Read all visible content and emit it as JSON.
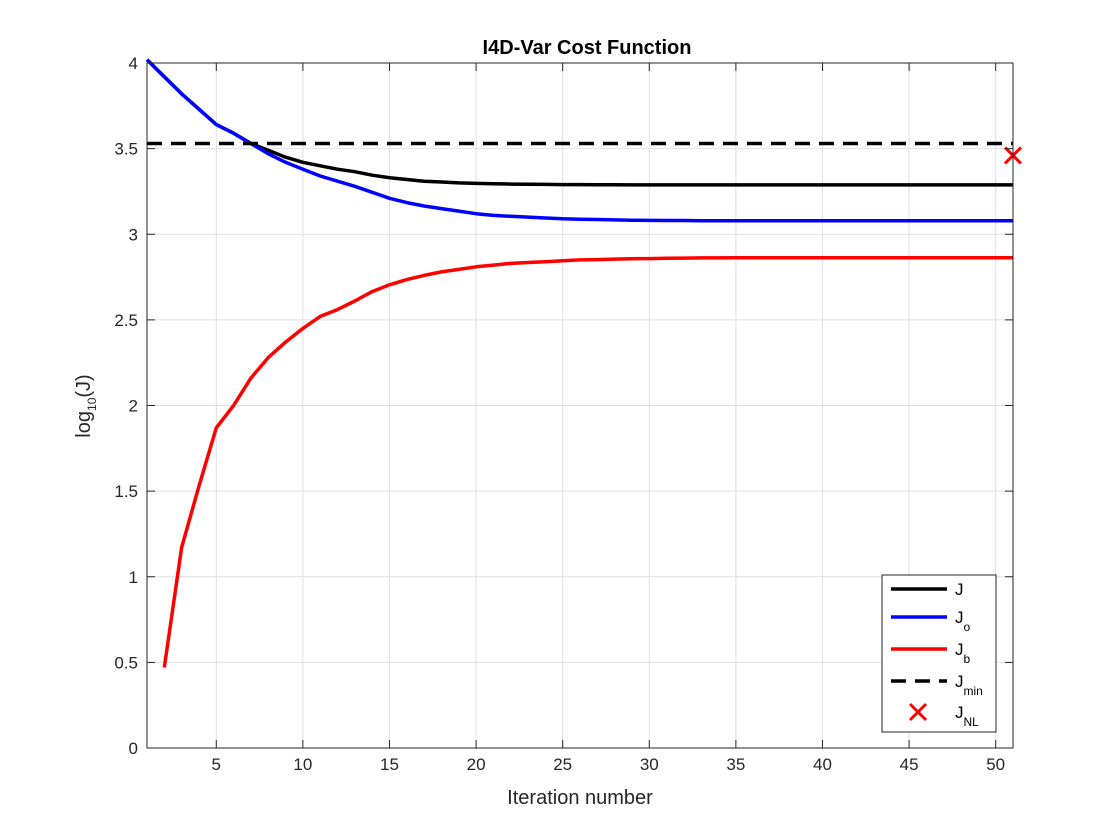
{
  "chart_data": {
    "type": "line",
    "title": "I4D-Var Cost Function",
    "xlabel": "Iteration number",
    "ylabel": {
      "main": "log",
      "sub": "10",
      "tail": "(J)"
    },
    "xlim": [
      1,
      51
    ],
    "ylim": [
      0,
      4
    ],
    "xticks": [
      5,
      10,
      15,
      20,
      25,
      30,
      35,
      40,
      45,
      50
    ],
    "yticks": [
      0,
      0.5,
      1,
      1.5,
      2,
      2.5,
      3,
      3.5,
      4
    ],
    "grid": true,
    "legend_position": "bottom-right",
    "series": [
      {
        "name": "J",
        "name_main": "J",
        "name_sub": "",
        "color": "#000000",
        "style": "solid",
        "x": [
          1,
          2,
          3,
          4,
          5,
          6,
          7,
          8,
          9,
          10,
          11,
          12,
          13,
          14,
          15,
          16,
          17,
          18,
          19,
          20,
          21,
          22,
          23,
          24,
          25,
          26,
          27,
          28,
          29,
          30,
          31,
          32,
          33,
          34,
          35,
          36,
          37,
          38,
          39,
          40,
          41,
          42,
          43,
          44,
          45,
          46,
          47,
          48,
          49,
          50,
          51
        ],
        "y": [
          4.02,
          3.92,
          3.82,
          3.73,
          3.64,
          3.59,
          3.53,
          3.49,
          3.45,
          3.42,
          3.4,
          3.38,
          3.365,
          3.345,
          3.33,
          3.32,
          3.31,
          3.305,
          3.3,
          3.297,
          3.295,
          3.293,
          3.292,
          3.291,
          3.29,
          3.29,
          3.289,
          3.289,
          3.288,
          3.288,
          3.288,
          3.288,
          3.288,
          3.288,
          3.288,
          3.288,
          3.288,
          3.288,
          3.288,
          3.288,
          3.288,
          3.288,
          3.288,
          3.288,
          3.288,
          3.288,
          3.288,
          3.288,
          3.288,
          3.288,
          3.288
        ]
      },
      {
        "name": "Jo",
        "name_main": "J",
        "name_sub": "o",
        "color": "#0000ff",
        "style": "solid",
        "x": [
          1,
          2,
          3,
          4,
          5,
          6,
          7,
          8,
          9,
          10,
          11,
          12,
          13,
          14,
          15,
          16,
          17,
          18,
          19,
          20,
          21,
          22,
          23,
          24,
          25,
          26,
          27,
          28,
          29,
          30,
          31,
          32,
          33,
          34,
          35,
          36,
          37,
          38,
          39,
          40,
          41,
          42,
          43,
          44,
          45,
          46,
          47,
          48,
          49,
          50,
          51
        ],
        "y": [
          4.02,
          3.92,
          3.82,
          3.73,
          3.64,
          3.59,
          3.53,
          3.47,
          3.42,
          3.38,
          3.34,
          3.31,
          3.28,
          3.245,
          3.21,
          3.185,
          3.165,
          3.15,
          3.135,
          3.12,
          3.11,
          3.105,
          3.1,
          3.095,
          3.09,
          3.088,
          3.086,
          3.084,
          3.082,
          3.081,
          3.08,
          3.08,
          3.079,
          3.079,
          3.079,
          3.079,
          3.079,
          3.079,
          3.079,
          3.079,
          3.079,
          3.079,
          3.079,
          3.079,
          3.079,
          3.079,
          3.079,
          3.079,
          3.079,
          3.079,
          3.079
        ]
      },
      {
        "name": "Jb",
        "name_main": "J",
        "name_sub": "b",
        "color": "#ff0000",
        "style": "solid",
        "x": [
          2,
          3,
          4,
          5,
          6,
          7,
          8,
          9,
          10,
          11,
          12,
          13,
          14,
          15,
          16,
          17,
          18,
          19,
          20,
          21,
          22,
          23,
          24,
          25,
          26,
          27,
          28,
          29,
          30,
          31,
          32,
          33,
          34,
          35,
          36,
          37,
          38,
          39,
          40,
          41,
          42,
          43,
          44,
          45,
          46,
          47,
          48,
          49,
          50,
          51
        ],
        "y": [
          0.47,
          1.17,
          1.53,
          1.87,
          2.0,
          2.16,
          2.28,
          2.37,
          2.45,
          2.52,
          2.56,
          2.61,
          2.665,
          2.705,
          2.735,
          2.76,
          2.78,
          2.795,
          2.81,
          2.82,
          2.83,
          2.835,
          2.84,
          2.845,
          2.85,
          2.852,
          2.855,
          2.857,
          2.858,
          2.86,
          2.861,
          2.862,
          2.862,
          2.863,
          2.863,
          2.863,
          2.863,
          2.863,
          2.863,
          2.863,
          2.863,
          2.863,
          2.863,
          2.863,
          2.863,
          2.863,
          2.863,
          2.863,
          2.863,
          2.863
        ]
      },
      {
        "name": "Jmin",
        "name_main": "J",
        "name_sub": "min",
        "color": "#000000",
        "style": "dashed",
        "x": [
          1,
          51
        ],
        "y": [
          3.53,
          3.53
        ]
      },
      {
        "name": "JNL",
        "name_main": "J",
        "name_sub": "NL",
        "color": "#ff0000",
        "style": "marker-x",
        "x": [
          51
        ],
        "y": [
          3.46
        ]
      }
    ]
  }
}
